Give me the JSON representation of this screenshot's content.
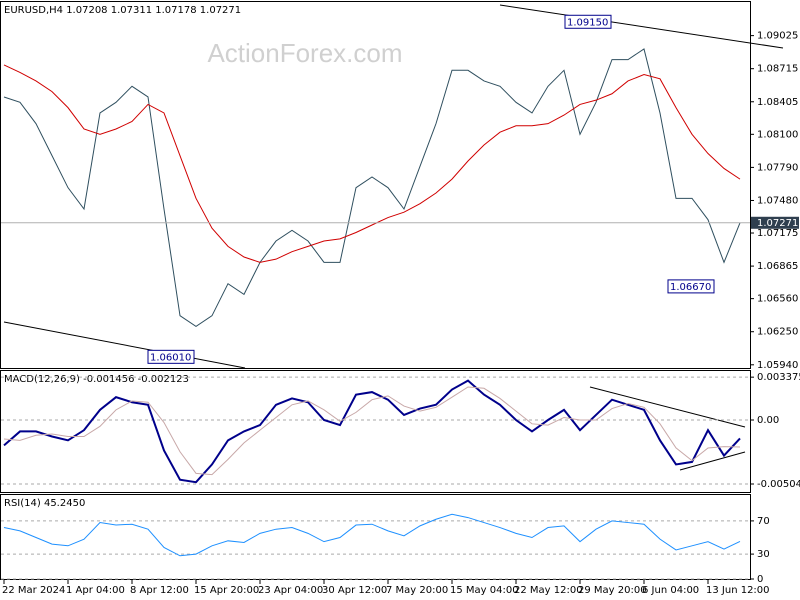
{
  "chart_data": [
    {
      "type": "line",
      "title": "EURUSD,H4  1.07208 1.07311 1.07178 1.07271",
      "watermark": "ActionForex.com",
      "categories": [
        "22 Mar 2024",
        null,
        null,
        null,
        "1 Apr 04:00",
        null,
        null,
        null,
        "8 Apr 12:00",
        null,
        null,
        null,
        "15 Apr 20:00",
        null,
        null,
        null,
        "23 Apr 04:00",
        null,
        null,
        null,
        "30 Apr 12:00",
        null,
        null,
        null,
        "7 May 20:00",
        null,
        null,
        null,
        "15 May 04:00",
        null,
        null,
        null,
        "22 May 12:00",
        null,
        null,
        null,
        "29 May 20:00",
        null,
        null,
        null,
        "6 Jun 04:00",
        null,
        null,
        null,
        "13 Jun 12:00",
        null,
        null
      ],
      "series": [
        {
          "name": "EURUSD",
          "color": "#2f4f5f",
          "values": [
            1.0845,
            1.084,
            1.082,
            1.079,
            1.076,
            1.074,
            1.083,
            1.084,
            1.0855,
            1.0845,
            1.074,
            1.064,
            1.063,
            1.064,
            1.067,
            1.066,
            1.069,
            1.071,
            1.072,
            1.071,
            1.069,
            1.069,
            1.076,
            1.077,
            1.076,
            1.074,
            1.078,
            1.082,
            1.087,
            1.087,
            1.086,
            1.0855,
            1.084,
            1.083,
            1.0855,
            1.087,
            1.081,
            1.084,
            1.088,
            1.088,
            1.089,
            1.083,
            1.075,
            1.075,
            1.073,
            1.069,
            1.07271
          ]
        },
        {
          "name": "MA",
          "color": "#d00000",
          "values": [
            1.0875,
            1.0868,
            1.086,
            1.085,
            1.0835,
            1.0815,
            1.081,
            1.0815,
            1.0822,
            1.0838,
            1.083,
            1.079,
            1.075,
            1.0722,
            1.0705,
            1.0695,
            1.069,
            1.0693,
            1.07,
            1.0705,
            1.071,
            1.0712,
            1.0718,
            1.0725,
            1.0732,
            1.0737,
            1.0745,
            1.0755,
            1.0768,
            1.0785,
            1.08,
            1.0812,
            1.0818,
            1.0818,
            1.082,
            1.0828,
            1.0838,
            1.0842,
            1.0848,
            1.086,
            1.0866,
            1.0862,
            1.0835,
            1.081,
            1.0792,
            1.0778,
            1.0768
          ]
        }
      ],
      "ylim": [
        1.0591,
        1.0934
      ],
      "yticks": [
        1.09025,
        {
          "value": 1.08715,
          "label": "1.08715"
        },
        {
          "value": 1.08405,
          "label": "1.08405"
        },
        {
          "value": 1.081,
          "label": "1.08100"
        },
        {
          "value": 1.0779,
          "label": "1.07790"
        },
        {
          "value": 1.0748,
          "label": "1.07480"
        },
        1.07175,
        1.06865,
        {
          "value": 1.0656,
          "label": "1.06560"
        },
        {
          "value": 1.0625,
          "label": "1.06250"
        },
        {
          "value": 1.0594,
          "label": "1.05940"
        }
      ],
      "last_price": {
        "value": 1.07271,
        "label": "1.07271"
      },
      "annotations": [
        {
          "value": 1.0915,
          "label": "1.09150"
        },
        {
          "value": 1.0667,
          "label": "1.06670"
        },
        {
          "value": 1.0601,
          "label": "1.06010"
        }
      ]
    },
    {
      "type": "line",
      "title": "MACD(12,26,9) -0.001456 -0.002123",
      "series": [
        {
          "name": "MACD",
          "color": "#00008b",
          "values": [
            -0.002,
            -0.0009,
            -0.0009,
            -0.0013,
            -0.0016,
            -0.0008,
            0.0008,
            0.0018,
            0.0014,
            0.0012,
            -0.0024,
            -0.0047,
            -0.0049,
            -0.0035,
            -0.0016,
            -0.0009,
            -0.0004,
            0.0012,
            0.0017,
            0.0014,
            0.0,
            -0.0004,
            0.002,
            0.0022,
            0.0016,
            0.0004,
            0.0009,
            0.0012,
            0.0024,
            0.0031,
            0.002,
            0.0012,
            0.0,
            -0.0009,
            0.0,
            0.0008,
            -0.0008,
            0.0004,
            0.0016,
            0.0012,
            0.0008,
            -0.0016,
            -0.0035,
            -0.0033,
            -0.0008,
            -0.0028,
            -0.001456
          ]
        },
        {
          "name": "Signal",
          "color": "#c8a8a8",
          "values": [
            -0.0015,
            -0.0016,
            -0.0012,
            -0.0011,
            -0.0013,
            -0.0013,
            -0.0005,
            0.0008,
            0.0015,
            0.0014,
            -0.0002,
            -0.0025,
            -0.0042,
            -0.0043,
            -0.0031,
            -0.0018,
            -0.0008,
            0.0002,
            0.0012,
            0.0015,
            0.0008,
            -0.0001,
            0.0006,
            0.0016,
            0.0019,
            0.0011,
            0.0007,
            0.001,
            0.0018,
            0.0026,
            0.0025,
            0.0017,
            0.0007,
            -0.0003,
            -0.0004,
            0.0002,
            0.0,
            0.0,
            0.0009,
            0.0013,
            0.001,
            -0.0003,
            -0.0022,
            -0.0032,
            -0.0022,
            -0.0021,
            -0.002123
          ]
        }
      ],
      "ylim": [
        -0.00567,
        0.00386
      ],
      "yticks": [
        0.003375,
        {
          "value": 0,
          "label": "0.00"
        },
        -0.00504
      ]
    },
    {
      "type": "line",
      "title": "RSI(14) 45.2450",
      "series": [
        {
          "name": "RSI",
          "color": "#1e90ff",
          "values": [
            62,
            58,
            50,
            42,
            40,
            48,
            68,
            65,
            66,
            60,
            38,
            28,
            30,
            40,
            46,
            44,
            55,
            60,
            62,
            55,
            45,
            50,
            65,
            66,
            58,
            52,
            64,
            72,
            78,
            74,
            68,
            62,
            55,
            50,
            62,
            64,
            45,
            60,
            70,
            68,
            66,
            48,
            35,
            40,
            45,
            36,
            45.245
          ]
        }
      ],
      "ylim": [
        0,
        100
      ],
      "yticks": [
        70,
        30,
        0
      ]
    }
  ]
}
